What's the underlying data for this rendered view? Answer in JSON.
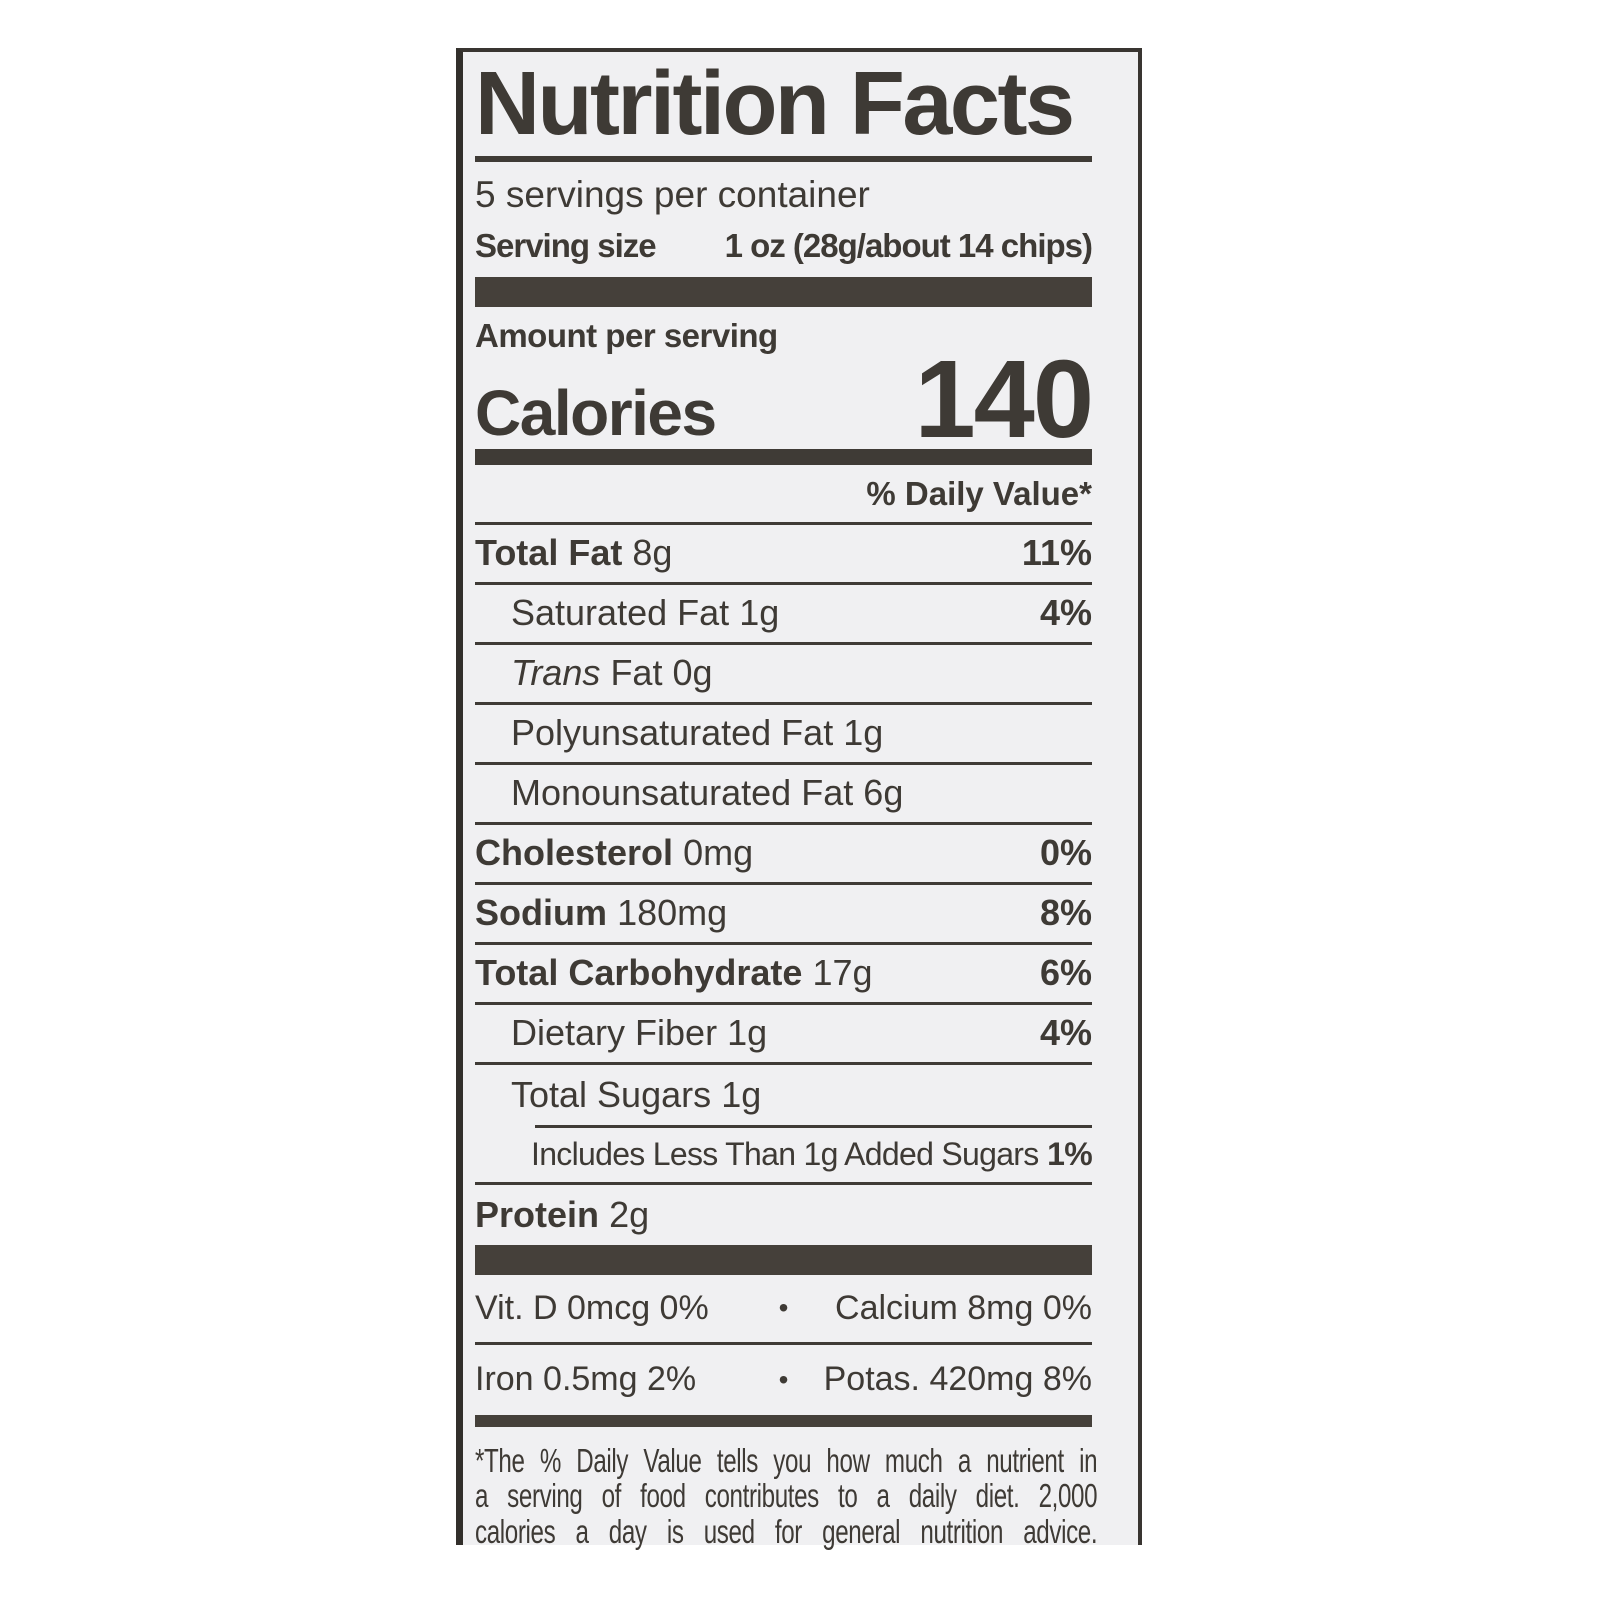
{
  "colors": {
    "ink": "#3e3a35",
    "bar": "#45403a",
    "label_bg": "#f0f0f2",
    "page_bg": "#ffffff"
  },
  "label": {
    "title": "Nutrition Facts",
    "servings_per_container": "5 servings per container",
    "serving_size_label": "Serving size",
    "serving_size_value": "1 oz (28g/about 14 chips)",
    "amount_per_serving": "Amount per serving",
    "calories_label": "Calories",
    "calories_value": "140",
    "daily_value_header": "% Daily Value*",
    "rows": [
      {
        "name": "Total Fat",
        "amount": "8g",
        "dv": "11%"
      },
      {
        "name": "Saturated Fat",
        "amount": "1g",
        "dv": "4%"
      },
      {
        "name_italic": "Trans",
        "name": "Fat",
        "amount": "0g",
        "dv": ""
      },
      {
        "name": "Polyunsaturated Fat",
        "amount": "1g",
        "dv": ""
      },
      {
        "name": "Monounsaturated Fat",
        "amount": "6g",
        "dv": ""
      },
      {
        "name": "Cholesterol",
        "amount": "0mg",
        "dv": "0%"
      },
      {
        "name": "Sodium",
        "amount": "180mg",
        "dv": "8%"
      },
      {
        "name": "Total Carbohydrate",
        "amount": "17g",
        "dv": "6%"
      },
      {
        "name": "Dietary Fiber",
        "amount": "1g",
        "dv": "4%"
      },
      {
        "name": "Total Sugars",
        "amount": "1g",
        "dv": ""
      },
      {
        "name": "Includes Less Than 1g Added Sugars",
        "amount": "",
        "dv": "1%"
      },
      {
        "name": "Protein",
        "amount": "2g",
        "dv": ""
      }
    ],
    "bullet": "•",
    "micros": [
      {
        "left": "Vit. D 0mcg 0%",
        "right": "Calcium 8mg 0%"
      },
      {
        "left": "Iron 0.5mg 2%",
        "right": "Potas. 420mg 8%"
      }
    ],
    "footnote_lines": [
      "*The % Daily Value tells you how much a nutrient in",
      "a serving of food contributes to a daily diet. 2,000",
      "calories a day is used for general nutrition advice."
    ]
  }
}
